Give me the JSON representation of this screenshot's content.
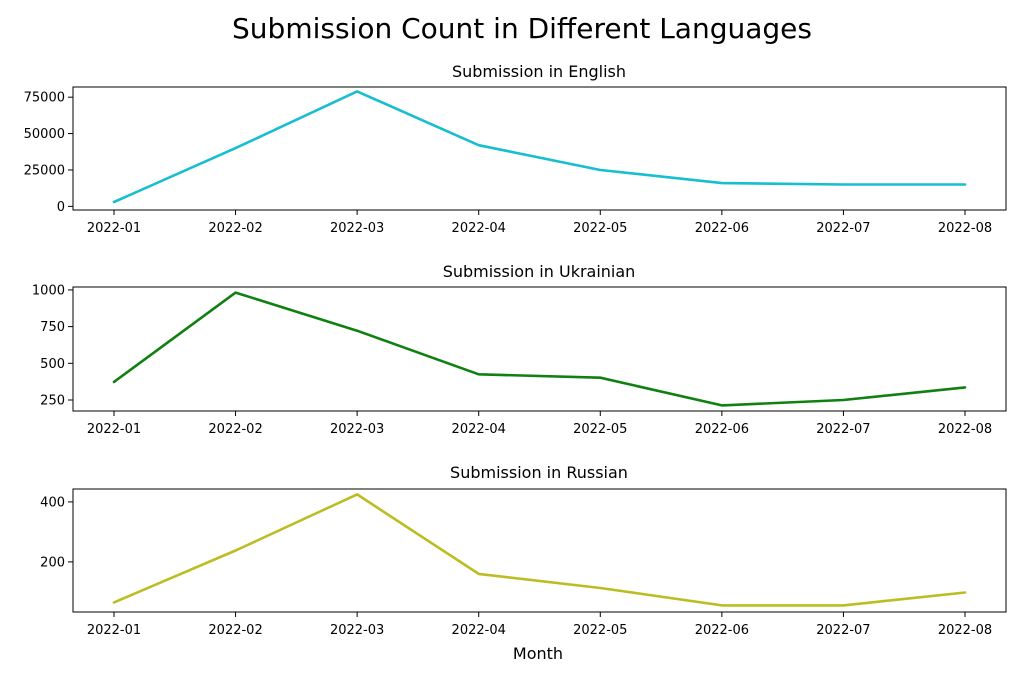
{
  "figure": {
    "title": "Submission Count in Different Languages",
    "xlabel": "Month"
  },
  "chart_data": [
    {
      "type": "line",
      "title": "Submission in English",
      "xlabel": "",
      "ylabel": "",
      "x": [
        "2022-01",
        "2022-02",
        "2022-03",
        "2022-04",
        "2022-05",
        "2022-06",
        "2022-07",
        "2022-08"
      ],
      "series": [
        {
          "values": [
            3000,
            40000,
            79000,
            42000,
            25000,
            16000,
            15000,
            15000
          ],
          "color": "#17becf"
        }
      ],
      "ylim": [
        -2500,
        82000
      ],
      "yticks": [
        0,
        25000,
        50000,
        75000
      ],
      "grid": false
    },
    {
      "type": "line",
      "title": "Submission in Ukrainian",
      "xlabel": "",
      "ylabel": "",
      "x": [
        "2022-01",
        "2022-02",
        "2022-03",
        "2022-04",
        "2022-05",
        "2022-06",
        "2022-07",
        "2022-08"
      ],
      "series": [
        {
          "values": [
            373,
            982,
            722,
            425,
            402,
            213,
            250,
            336
          ],
          "color": "#108010"
        }
      ],
      "ylim": [
        175,
        1020
      ],
      "yticks": [
        250,
        500,
        750,
        1000
      ],
      "grid": false
    },
    {
      "type": "line",
      "title": "Submission in Russian",
      "xlabel": "Month",
      "ylabel": "",
      "x": [
        "2022-01",
        "2022-02",
        "2022-03",
        "2022-04",
        "2022-05",
        "2022-06",
        "2022-07",
        "2022-08"
      ],
      "series": [
        {
          "values": [
            65,
            238,
            425,
            160,
            113,
            55,
            55,
            98
          ],
          "color": "#bcbd22"
        }
      ],
      "ylim": [
        33,
        443
      ],
      "yticks": [
        200,
        400
      ],
      "grid": false
    }
  ]
}
